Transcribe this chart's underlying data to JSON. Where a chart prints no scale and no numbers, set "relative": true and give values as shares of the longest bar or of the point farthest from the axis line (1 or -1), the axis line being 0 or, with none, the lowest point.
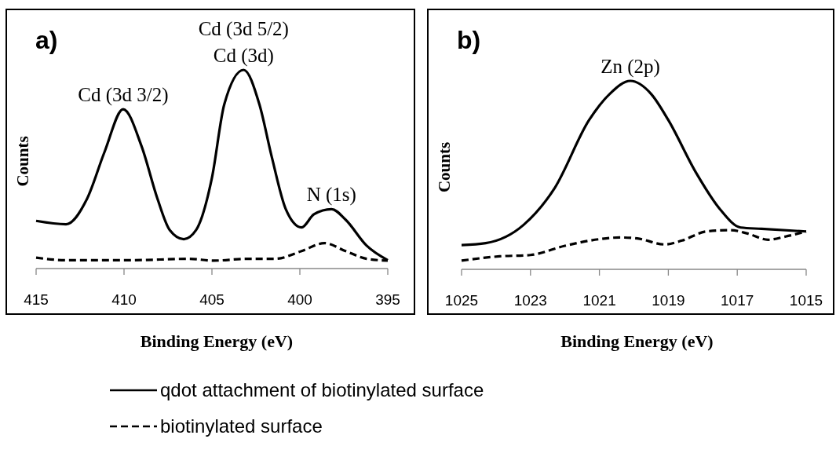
{
  "chart_data": [
    {
      "type": "line",
      "title": "a)",
      "xlabel": "Binding Energy (eV)",
      "ylabel": "Counts",
      "relative": true,
      "xlim": [
        415,
        395
      ],
      "xticks": [
        415,
        410,
        405,
        400,
        395
      ],
      "legend": "bottom",
      "annotations": [
        {
          "text": "Cd (3d 3/2)",
          "x": 410.05,
          "y": 0.802
        },
        {
          "text": "Cd (3d)",
          "x": 403.2,
          "y": 1.0
        },
        {
          "text": "Cd (3d 5/2)",
          "x": 403.2,
          "y": 1.0
        },
        {
          "text": "N (1s)",
          "x": 398.2,
          "y": 0.299
        }
      ],
      "series": [
        {
          "name": "qdot attachment of biotinylated surface",
          "color": "#000000",
          "line_style": "solid",
          "x": [
            415,
            413.3,
            412.1,
            411.1,
            410.05,
            409.0,
            408.1,
            407.4,
            406.6,
            405.9,
            405.0,
            404.3,
            403.2,
            402.3,
            401.6,
            400.8,
            399.9,
            399.2,
            398.2,
            397.4,
            396.2,
            395
          ],
          "values": [
            0.24,
            0.223,
            0.352,
            0.589,
            0.802,
            0.615,
            0.352,
            0.194,
            0.148,
            0.194,
            0.457,
            0.826,
            1.0,
            0.826,
            0.563,
            0.299,
            0.207,
            0.273,
            0.299,
            0.246,
            0.115,
            0.042
          ]
        },
        {
          "name": "biotinylated surface",
          "color": "#000000",
          "line_style": "dashed",
          "x": [
            415,
            413.3,
            409.6,
            406.3,
            404.9,
            403.0,
            401.4,
            399.9,
            398.6,
            397.4,
            396.2,
            395
          ],
          "values": [
            0.055,
            0.042,
            0.042,
            0.049,
            0.04,
            0.049,
            0.049,
            0.088,
            0.128,
            0.088,
            0.049,
            0.04
          ]
        }
      ]
    },
    {
      "type": "line",
      "title": "b)",
      "xlabel": "Binding Energy (eV)",
      "ylabel": "Counts",
      "relative": true,
      "xlim": [
        1025,
        1015
      ],
      "xticks": [
        1025,
        1023,
        1021,
        1019,
        1017,
        1015
      ],
      "annotations": [
        {
          "text": "Zn (2p)",
          "x": 1020.1,
          "y": 1.0
        }
      ],
      "series": [
        {
          "color": "#000000",
          "line_style": "solid",
          "x": [
            1025,
            1024.3,
            1023.2,
            1022.3,
            1021.3,
            1020.7,
            1020.1,
            1019.5,
            1019.0,
            1018.2,
            1017.5,
            1016.9,
            1016.3,
            1015
          ],
          "values": [
            0.129,
            0.139,
            0.236,
            0.431,
            0.792,
            0.931,
            1.0,
            0.931,
            0.792,
            0.514,
            0.319,
            0.222,
            0.215,
            0.201
          ]
        },
        {
          "color": "#000000",
          "line_style": "dashed",
          "x": [
            1025,
            1023.9,
            1023.0,
            1022.0,
            1021.0,
            1020.4,
            1019.9,
            1019.1,
            1018.6,
            1017.9,
            1017.2,
            1016.7,
            1016.1,
            1015.6,
            1015
          ],
          "values": [
            0.046,
            0.069,
            0.076,
            0.125,
            0.16,
            0.169,
            0.164,
            0.132,
            0.153,
            0.201,
            0.208,
            0.19,
            0.157,
            0.174,
            0.201
          ]
        }
      ]
    }
  ]
}
